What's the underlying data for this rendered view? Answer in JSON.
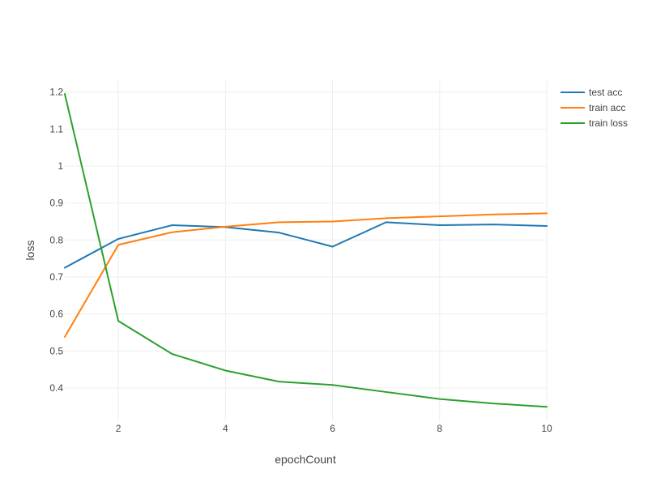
{
  "chart_data": {
    "type": "line",
    "title": "",
    "xlabel": "epochCount",
    "ylabel": "loss",
    "xlim": [
      1,
      10
    ],
    "ylim": [
      0.31,
      1.23
    ],
    "x_ticks": [
      "2",
      "4",
      "6",
      "8",
      "10"
    ],
    "y_ticks": [
      "0.4",
      "0.5",
      "0.6",
      "0.7",
      "0.8",
      "0.9",
      "1",
      "1.1",
      "1.2"
    ],
    "grid": true,
    "legend_position": "top-right",
    "x": [
      1,
      2,
      3,
      4,
      5,
      6,
      7,
      8,
      9,
      10
    ],
    "series": [
      {
        "name": "test acc",
        "color": "#1f77b4",
        "values": [
          0.725,
          0.803,
          0.84,
          0.835,
          0.82,
          0.782,
          0.848,
          0.84,
          0.842,
          0.838
        ]
      },
      {
        "name": "train acc",
        "color": "#ff7f0e",
        "values": [
          0.538,
          0.787,
          0.821,
          0.836,
          0.848,
          0.85,
          0.859,
          0.864,
          0.869,
          0.872
        ]
      },
      {
        "name": "train loss",
        "color": "#2ca02c",
        "values": [
          1.195,
          0.581,
          0.492,
          0.447,
          0.417,
          0.408,
          0.389,
          0.37,
          0.358,
          0.349
        ]
      }
    ]
  }
}
